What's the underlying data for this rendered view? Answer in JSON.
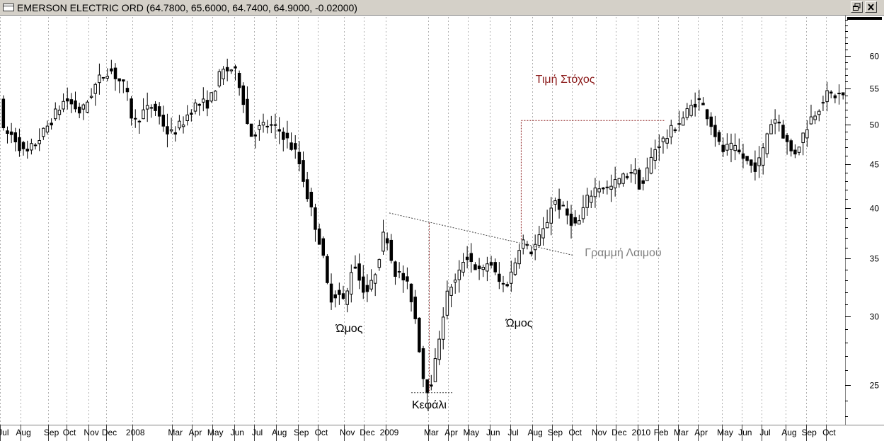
{
  "window": {
    "title": "EMERSON ELECTRIC ORD (64.7800, 65.6000, 64.7400, 64.9000, -0.02000)",
    "restore_icon": "restore-icon",
    "close_icon": "close-icon"
  },
  "chart_data": {
    "type": "candlestick",
    "yscale": "log",
    "ylim": [
      22.5,
      66.5
    ],
    "yticks": [
      25,
      30,
      35,
      40,
      45,
      50,
      55,
      60
    ],
    "xlim": [
      0,
      211
    ],
    "month_labels": [
      {
        "t": 0.5,
        "label": "Jul"
      },
      {
        "t": 5.5,
        "label": "Aug"
      },
      {
        "t": 12.5,
        "label": "Sep"
      },
      {
        "t": 17,
        "label": "Oct"
      },
      {
        "t": 22.5,
        "label": "Nov"
      },
      {
        "t": 27,
        "label": "Dec"
      },
      {
        "t": 33.5,
        "label": "2008"
      },
      {
        "t": 43.5,
        "label": "Mar"
      },
      {
        "t": 48.5,
        "label": "Apr"
      },
      {
        "t": 53.5,
        "label": "May"
      },
      {
        "t": 59,
        "label": "Jun"
      },
      {
        "t": 64,
        "label": "Jul"
      },
      {
        "t": 69.5,
        "label": "Aug"
      },
      {
        "t": 75,
        "label": "Sep"
      },
      {
        "t": 80,
        "label": "Oct"
      },
      {
        "t": 86.5,
        "label": "Nov"
      },
      {
        "t": 91.5,
        "label": "Dec"
      },
      {
        "t": 97,
        "label": "2009"
      },
      {
        "t": 107.5,
        "label": "Mar"
      },
      {
        "t": 112.5,
        "label": "Apr"
      },
      {
        "t": 117.5,
        "label": "May"
      },
      {
        "t": 123,
        "label": "Jun"
      },
      {
        "t": 128,
        "label": "Jul"
      },
      {
        "t": 133.5,
        "label": "Aug"
      },
      {
        "t": 138.5,
        "label": "Sep"
      },
      {
        "t": 143.5,
        "label": "Oct"
      },
      {
        "t": 149.5,
        "label": "Nov"
      },
      {
        "t": 154.5,
        "label": "Dec"
      },
      {
        "t": 160,
        "label": "2010"
      },
      {
        "t": 165,
        "label": "Feb"
      },
      {
        "t": 170,
        "label": "Mar"
      },
      {
        "t": 175,
        "label": "Apr"
      },
      {
        "t": 181,
        "label": "May"
      },
      {
        "t": 186,
        "label": "Jun"
      },
      {
        "t": 191,
        "label": "Jul"
      },
      {
        "t": 197,
        "label": "Aug"
      },
      {
        "t": 202,
        "label": "Sep"
      },
      {
        "t": 207,
        "label": "Oct"
      }
    ],
    "anchors": [
      [
        0,
        49
      ],
      [
        3,
        48.5
      ],
      [
        6,
        46
      ],
      [
        10,
        48.5
      ],
      [
        13,
        51
      ],
      [
        16,
        53.5
      ],
      [
        20,
        51.5
      ],
      [
        24,
        56
      ],
      [
        27,
        58
      ],
      [
        31,
        55
      ],
      [
        33,
        50
      ],
      [
        35,
        51.5
      ],
      [
        38,
        52.5
      ],
      [
        42,
        48.5
      ],
      [
        45,
        50
      ],
      [
        48,
        52.5
      ],
      [
        52,
        53
      ],
      [
        55,
        57.5
      ],
      [
        58,
        58
      ],
      [
        60,
        55
      ],
      [
        62,
        48.5
      ],
      [
        66,
        50
      ],
      [
        70,
        49
      ],
      [
        74,
        46
      ],
      [
        77,
        40.5
      ],
      [
        80,
        36
      ],
      [
        82,
        31.5
      ],
      [
        84,
        32
      ],
      [
        86,
        31
      ],
      [
        88,
        35
      ],
      [
        90,
        32.5
      ],
      [
        92,
        32
      ],
      [
        94,
        34.5
      ],
      [
        96,
        38
      ],
      [
        98,
        34
      ],
      [
        101,
        33
      ],
      [
        103,
        31
      ],
      [
        105,
        26.5
      ],
      [
        106,
        24.6
      ],
      [
        108,
        25.5
      ],
      [
        110,
        29.5
      ],
      [
        112,
        32.5
      ],
      [
        114,
        33
      ],
      [
        116,
        35.5
      ],
      [
        118,
        34.5
      ],
      [
        120,
        33.5
      ],
      [
        122,
        35
      ],
      [
        124,
        33
      ],
      [
        126,
        32.5
      ],
      [
        128,
        34
      ],
      [
        130,
        37
      ],
      [
        132,
        35.5
      ],
      [
        134,
        36.5
      ],
      [
        136,
        38
      ],
      [
        138,
        41
      ],
      [
        140,
        40
      ],
      [
        142,
        39
      ],
      [
        144,
        38
      ],
      [
        146,
        40.5
      ],
      [
        148,
        42
      ],
      [
        150,
        42.5
      ],
      [
        152,
        42
      ],
      [
        154,
        43
      ],
      [
        156,
        43.5
      ],
      [
        158,
        44.5
      ],
      [
        160,
        42
      ],
      [
        162,
        45
      ],
      [
        164,
        47.5
      ],
      [
        166,
        48
      ],
      [
        168,
        49.5
      ],
      [
        170,
        50.5
      ],
      [
        172,
        52
      ],
      [
        174,
        53.5
      ],
      [
        176,
        52
      ],
      [
        178,
        49.5
      ],
      [
        180,
        46.5
      ],
      [
        182,
        47
      ],
      [
        184,
        46.5
      ],
      [
        186,
        45.5
      ],
      [
        188,
        44.5
      ],
      [
        190,
        45.5
      ],
      [
        192,
        50
      ],
      [
        194,
        51
      ],
      [
        196,
        48
      ],
      [
        198,
        46
      ],
      [
        200,
        48
      ],
      [
        202,
        50.5
      ],
      [
        204,
        52
      ],
      [
        206,
        54
      ],
      [
        208,
        54
      ],
      [
        210,
        54
      ]
    ],
    "annotations": [
      {
        "text": "Ώμος",
        "t": 87,
        "price": 28.8,
        "color": "#000000"
      },
      {
        "text": "Κεφάλι",
        "t": 107,
        "price": 23.5,
        "color": "#000000"
      },
      {
        "text": "Ώμος",
        "t": 129.5,
        "price": 29.2,
        "color": "#000000"
      },
      {
        "text": "Τιμή Στόχος",
        "t": 141,
        "price": 55.8,
        "color": "#8b1a1a"
      },
      {
        "text": "Γραμμή Λαιμού",
        "t": 155.5,
        "price": 35.2,
        "color": "#808080"
      }
    ],
    "neckline": {
      "from": [
        97,
        39.5
      ],
      "to": [
        143,
        35.3
      ],
      "color": "#404040"
    },
    "head_target": {
      "t": 107,
      "from": 38.5,
      "to": 24.5,
      "color": "#8b1a1a"
    },
    "target_projection": {
      "t": 130,
      "from": 36.8,
      "to": 50.5,
      "end_t": 166,
      "color": "#8b1a1a"
    },
    "head_base": {
      "from": 102.5,
      "to": 113,
      "price": 24.5,
      "color": "#404040"
    }
  }
}
